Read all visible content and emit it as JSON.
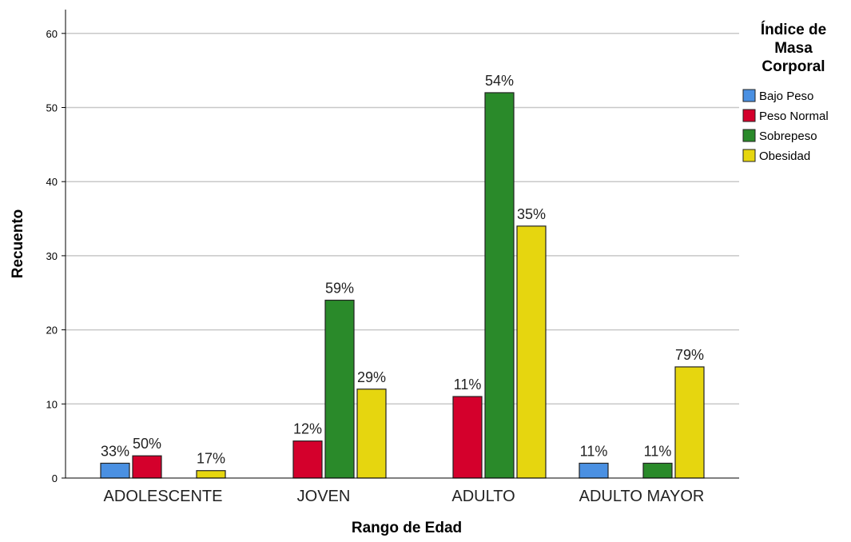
{
  "chart_data": {
    "type": "bar",
    "title": "",
    "xlabel": "Rango de Edad",
    "ylabel": "Recuento",
    "ylim": [
      0,
      60
    ],
    "yticks": [
      0,
      10,
      20,
      30,
      40,
      50,
      60
    ],
    "grid": true,
    "legend_position": "top-right",
    "legend_title": [
      "Índice de",
      "Masa",
      "Corporal"
    ],
    "categories": [
      "ADOLESCENTE",
      "JOVEN",
      "ADULTO",
      "ADULTO MAYOR"
    ],
    "series": [
      {
        "name": "Bajo Peso",
        "color": "#4a90e2",
        "values": [
          2,
          null,
          null,
          2
        ],
        "labels": [
          "33%",
          "",
          "",
          "11%"
        ]
      },
      {
        "name": "Peso Normal",
        "color": "#d4002c",
        "values": [
          3,
          5,
          11,
          null
        ],
        "labels": [
          "50%",
          "12%",
          "11%",
          ""
        ]
      },
      {
        "name": "Sobrepeso",
        "color": "#2a8a2a",
        "values": [
          null,
          24,
          52,
          2
        ],
        "labels": [
          "",
          "59%",
          "54%",
          "11%"
        ]
      },
      {
        "name": "Obesidad",
        "color": "#e6d60f",
        "values": [
          1,
          12,
          34,
          15
        ],
        "labels": [
          "17%",
          "29%",
          "35%",
          "79%"
        ]
      }
    ]
  }
}
